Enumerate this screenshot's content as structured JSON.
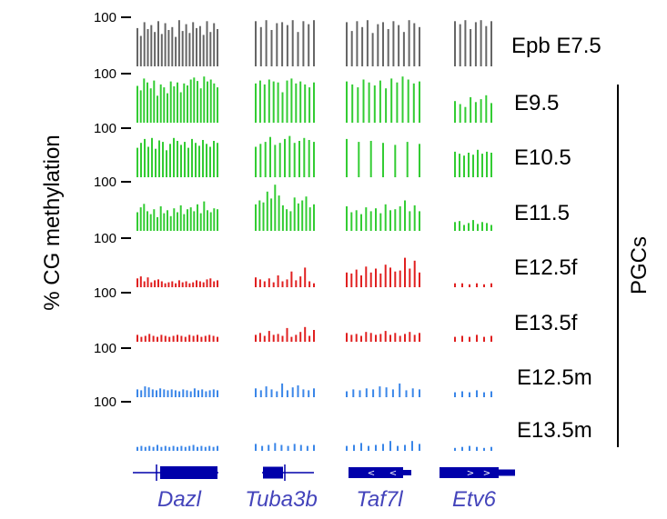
{
  "chart_data": {
    "type": "bar",
    "ylabel": "% CG methylation",
    "y_tick_label": "100",
    "ylim": [
      0,
      100
    ],
    "group_label": "PGCs",
    "genes": [
      "Dazl",
      "Tuba3b",
      "Taf7l",
      "Etv6"
    ],
    "colors": {
      "epb": "#666666",
      "green": "#33cc33",
      "red": "#e02020",
      "blue": "#3a86e8",
      "gene": "#0000aa",
      "gene_text": "#4444bb"
    },
    "tracks": [
      {
        "label": "Epb E7.5",
        "color": "#666666",
        "genes": [
          [
            78,
            62,
            90,
            76,
            84,
            70,
            92,
            66,
            88,
            74,
            80,
            60,
            94,
            72,
            86,
            68,
            90,
            78,
            82,
            64,
            92,
            70,
            88,
            76
          ],
          [
            92,
            80,
            94,
            74,
            88,
            90,
            84,
            94,
            70,
            92,
            86,
            94
          ],
          [
            90,
            72,
            92,
            80,
            94,
            68,
            86,
            90,
            76,
            92,
            84,
            70,
            94,
            88,
            80
          ],
          [
            92,
            86,
            94,
            76,
            90,
            94,
            82,
            92
          ]
        ]
      },
      {
        "label": "E9.5",
        "color": "#33cc33",
        "genes": [
          [
            75,
            66,
            90,
            82,
            70,
            86,
            55,
            78,
            72,
            60,
            84,
            74,
            82,
            62,
            80,
            76,
            88,
            92,
            85,
            70,
            94,
            84,
            88,
            80,
            72
          ],
          [
            80,
            86,
            78,
            88,
            84,
            82,
            62,
            86,
            90,
            80,
            84,
            78,
            72,
            82
          ],
          [
            84,
            78,
            72,
            88,
            82,
            76,
            86,
            70,
            90,
            82,
            94,
            88,
            80,
            84
          ],
          [
            44,
            38,
            32,
            52,
            42,
            48,
            56,
            40
          ]
        ]
      },
      {
        "label": "E10.5",
        "color": "#33cc33",
        "genes": [
          [
            60,
            70,
            78,
            62,
            80,
            58,
            75,
            72,
            55,
            68,
            80,
            74,
            66,
            72,
            60,
            78,
            70,
            64,
            76,
            68,
            62,
            74,
            70
          ],
          [
            62,
            68,
            72,
            82,
            66,
            70,
            78,
            84,
            70,
            74,
            80,
            76,
            72
          ],
          [
            78,
            72,
            74,
            70,
            66,
            72,
            68
          ],
          [
            52,
            48,
            44,
            50,
            46,
            56,
            48,
            52,
            50
          ]
        ]
      },
      {
        "label": "E11.5",
        "color": "#33cc33",
        "genes": [
          [
            38,
            48,
            55,
            40,
            34,
            44,
            28,
            50,
            36,
            42,
            30,
            46,
            38,
            52,
            34,
            44,
            48,
            40,
            54,
            36,
            60,
            42,
            38,
            46,
            44
          ],
          [
            54,
            62,
            58,
            80,
            66,
            94,
            72,
            52,
            44,
            40,
            68,
            56,
            62,
            70,
            48,
            54
          ],
          [
            50,
            38,
            42,
            34,
            48,
            40,
            46,
            36,
            54,
            42,
            44,
            50,
            62,
            40,
            52,
            40
          ],
          [
            18,
            20,
            12,
            16,
            22,
            14,
            18,
            16,
            12
          ]
        ]
      },
      {
        "label": "E12.5f",
        "color": "#e02020",
        "genes": [
          [
            18,
            22,
            12,
            20,
            10,
            14,
            16,
            12,
            8,
            10,
            12,
            8,
            14,
            10,
            12,
            8,
            10,
            14,
            12,
            10,
            16,
            18,
            12,
            14
          ],
          [
            20,
            16,
            12,
            18,
            10,
            24,
            12,
            16,
            32,
            14,
            22,
            40,
            12,
            8
          ],
          [
            30,
            28,
            36,
            24,
            42,
            30,
            38,
            28,
            46,
            40,
            32,
            34,
            60,
            38,
            54,
            30
          ],
          [
            8,
            8,
            6,
            8,
            6,
            8
          ]
        ]
      },
      {
        "label": "E13.5f",
        "color": "#e02020",
        "genes": [
          [
            14,
            10,
            12,
            16,
            12,
            10,
            14,
            12,
            10,
            12,
            14,
            12,
            10,
            14,
            12,
            14,
            10,
            12,
            14,
            12,
            10
          ],
          [
            14,
            18,
            12,
            22,
            14,
            16,
            12,
            28,
            10,
            14,
            20,
            30,
            12,
            24
          ],
          [
            18,
            14,
            16,
            12,
            20,
            18,
            14,
            16,
            22,
            14,
            18,
            12,
            16,
            20,
            14,
            18
          ],
          [
            10,
            12,
            10,
            14,
            10,
            12
          ]
        ]
      },
      {
        "label": "E12.5m",
        "color": "#3a86e8",
        "genes": [
          [
            16,
            14,
            22,
            20,
            16,
            14,
            18,
            16,
            14,
            16,
            14,
            12,
            16,
            14,
            12,
            18,
            14,
            16,
            12,
            14,
            16,
            14
          ],
          [
            18,
            14,
            22,
            16,
            12,
            28,
            14,
            20,
            24,
            16,
            14,
            18
          ],
          [
            12,
            16,
            14,
            18,
            16,
            22,
            20,
            16,
            28,
            14,
            18,
            16
          ],
          [
            10,
            12,
            10,
            14,
            10,
            12
          ]
        ]
      },
      {
        "label": "E13.5m",
        "color": "#3a86e8",
        "genes": [
          [
            8,
            10,
            8,
            10,
            8,
            12,
            8,
            10,
            8,
            10,
            8,
            10,
            8,
            10,
            12,
            8,
            10,
            8,
            10,
            8,
            10
          ],
          [
            14,
            10,
            12,
            16,
            12,
            10,
            14,
            12,
            10,
            12
          ],
          [
            10,
            12,
            16,
            10,
            12,
            14,
            20,
            10,
            12,
            20,
            14
          ],
          [
            6,
            8,
            10,
            8,
            6,
            8
          ]
        ]
      }
    ]
  }
}
